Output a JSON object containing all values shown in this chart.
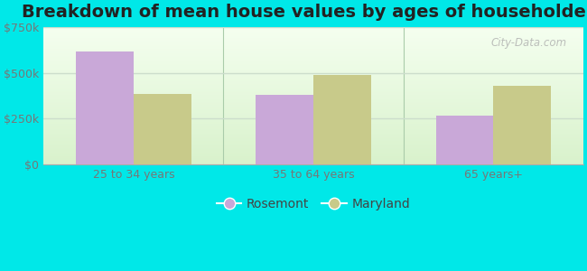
{
  "title": "Breakdown of mean house values by ages of householders",
  "categories": [
    "25 to 34 years",
    "35 to 64 years",
    "65 years+"
  ],
  "rosemont_values": [
    620000,
    380000,
    265000
  ],
  "maryland_values": [
    385000,
    490000,
    430000
  ],
  "rosemont_color": "#c9a8d8",
  "maryland_color": "#c8ca8a",
  "background_outer": "#00e8e8",
  "ylim": [
    0,
    750000
  ],
  "yticks": [
    0,
    250000,
    500000,
    750000
  ],
  "ytick_labels": [
    "$0",
    "$250k",
    "$500k",
    "$750k"
  ],
  "legend_labels": [
    "Rosemont",
    "Maryland"
  ],
  "title_fontsize": 14,
  "bar_width": 0.32,
  "watermark": "City-Data.com",
  "grid_color": "#ccddcc",
  "tick_label_color": "#777777",
  "title_color": "#222222"
}
